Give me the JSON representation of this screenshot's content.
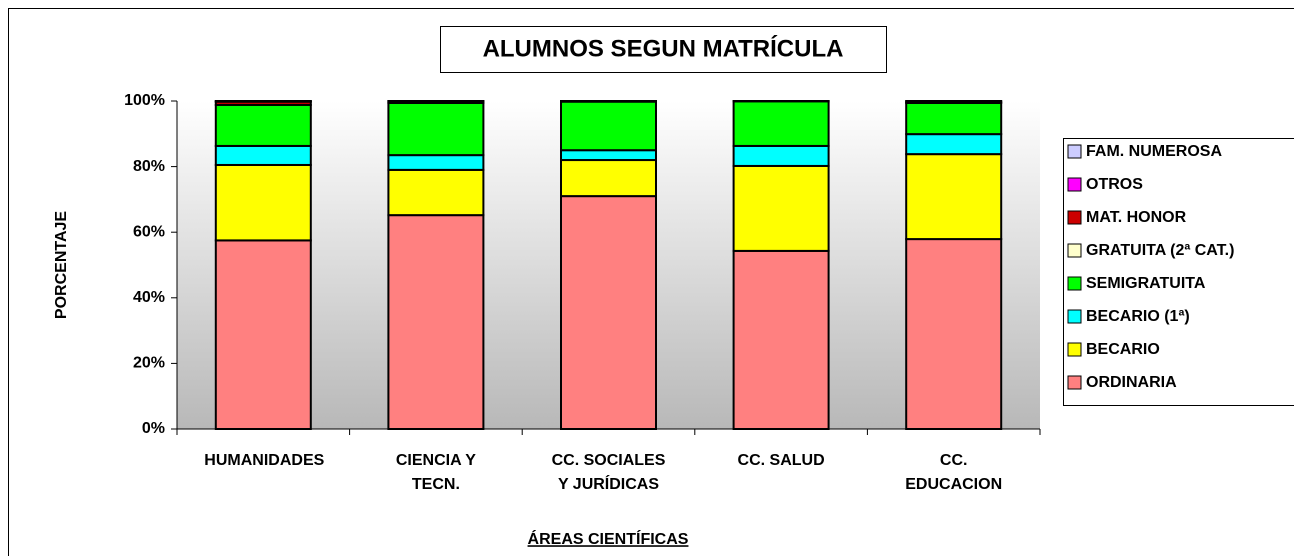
{
  "chart_data": {
    "type": "stacked_bar",
    "title": "ALUMNOS SEGUN MATRÍCULA",
    "x_label": "ÁREAS CIENTÍFICAS",
    "y_label": "PORCENTAJE",
    "categories": [
      "HUMANIDADES",
      "CIENCIA Y TECN.",
      "CC. SOCIALES Y JURÍDICAS",
      "CC. SALUD",
      "CC. EDUCACION"
    ],
    "series": [
      {
        "name": "ORDINARIA",
        "color": "#ff8080",
        "values": [
          57.5,
          65.2,
          71.0,
          54.3,
          57.9
        ]
      },
      {
        "name": "BECARIO",
        "color": "#ffff00",
        "values": [
          23.0,
          13.8,
          11.0,
          25.9,
          25.9
        ]
      },
      {
        "name": "BECARIO (1ª)",
        "color": "#00ffff",
        "values": [
          5.8,
          4.5,
          3.0,
          6.1,
          6.1
        ]
      },
      {
        "name": "SEMIGRATUITA",
        "color": "#00ff00",
        "values": [
          12.5,
          15.9,
          14.8,
          13.6,
          9.5
        ]
      },
      {
        "name": "GRATUITA (2ª CAT.)",
        "color": "#ffffcc",
        "values": [
          0,
          0,
          0,
          0,
          0
        ]
      },
      {
        "name": "MAT. HONOR",
        "color": "#cc0000",
        "values": [
          1.0,
          0.5,
          0.1,
          0.1,
          0.4
        ]
      },
      {
        "name": "OTROS",
        "color": "#ff00ff",
        "values": [
          0.1,
          0.1,
          0,
          0,
          0.2
        ]
      },
      {
        "name": "FAM. NUMEROSA",
        "color": "#ccccff",
        "values": [
          0.1,
          0,
          0.1,
          0,
          0
        ]
      }
    ],
    "ylim": [
      0,
      100
    ],
    "yticks": [
      {
        "value": 0,
        "label": "0%"
      },
      {
        "value": 20,
        "label": "20%"
      },
      {
        "value": 40,
        "label": "40%"
      },
      {
        "value": 60,
        "label": "60%"
      },
      {
        "value": 80,
        "label": "80%"
      },
      {
        "value": 100,
        "label": "100%"
      }
    ],
    "legend": "right"
  }
}
